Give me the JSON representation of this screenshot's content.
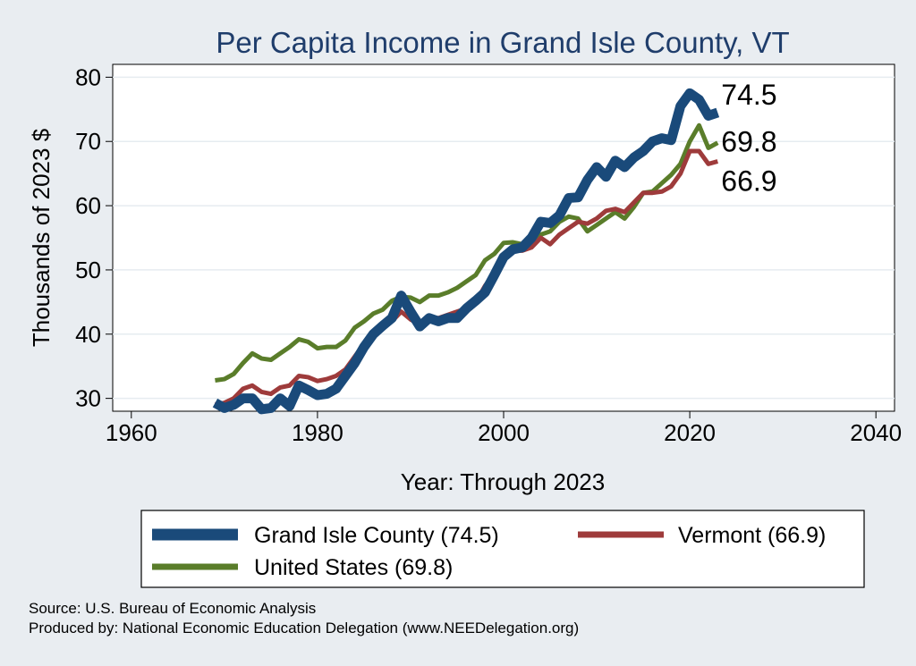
{
  "chart_data": {
    "type": "line",
    "title": "Per Capita Income in Grand Isle County, VT",
    "xlabel": "Year: Through 2023",
    "ylabel": "Thousands of 2023 $",
    "xlim": [
      1958,
      2042
    ],
    "ylim": [
      28,
      82
    ],
    "xticks": [
      1960,
      1980,
      2000,
      2020,
      2040
    ],
    "yticks": [
      30,
      40,
      50,
      60,
      70,
      80
    ],
    "x": [
      1969,
      1970,
      1971,
      1972,
      1973,
      1974,
      1975,
      1976,
      1977,
      1978,
      1979,
      1980,
      1981,
      1982,
      1983,
      1984,
      1985,
      1986,
      1987,
      1988,
      1989,
      1990,
      1991,
      1992,
      1993,
      1994,
      1995,
      1996,
      1997,
      1998,
      1999,
      2000,
      2001,
      2002,
      2003,
      2004,
      2005,
      2006,
      2007,
      2008,
      2009,
      2010,
      2011,
      2012,
      2013,
      2014,
      2015,
      2016,
      2017,
      2018,
      2019,
      2020,
      2021,
      2022,
      2023
    ],
    "series": [
      {
        "name": "Grand Isle County",
        "legend": "Grand Isle County (74.5)",
        "end_label": "74.5",
        "color": "#1a4a7a",
        "values": [
          29.3,
          28.5,
          29.0,
          30.0,
          30.0,
          28.3,
          28.5,
          30.0,
          28.8,
          32.0,
          31.3,
          30.5,
          30.7,
          31.5,
          33.5,
          35.5,
          38.0,
          40.0,
          41.3,
          42.5,
          46.0,
          43.5,
          41.2,
          42.5,
          42.0,
          42.5,
          42.5,
          44.0,
          45.2,
          46.5,
          49.2,
          52.0,
          53.2,
          53.5,
          55.0,
          57.5,
          57.3,
          58.5,
          61.2,
          61.3,
          64.0,
          66.0,
          64.5,
          67.0,
          66.0,
          67.5,
          68.5,
          70.0,
          70.5,
          70.2,
          75.5,
          77.5,
          76.5,
          74.0,
          74.5
        ]
      },
      {
        "name": "Vermont",
        "legend": "Vermont (66.9)",
        "end_label": "66.9",
        "color": "#9e3b3b",
        "values": [
          29.0,
          29.3,
          30.0,
          31.5,
          32.0,
          31.0,
          30.7,
          31.7,
          32.0,
          33.5,
          33.3,
          32.7,
          33.0,
          33.5,
          34.5,
          36.5,
          38.5,
          40.0,
          41.0,
          42.0,
          43.5,
          42.3,
          41.5,
          42.5,
          42.5,
          43.0,
          43.5,
          44.0,
          45.0,
          47.5,
          49.5,
          51.5,
          53.0,
          53.0,
          53.5,
          55.0,
          54.0,
          55.5,
          56.5,
          57.5,
          57.2,
          58.0,
          59.2,
          59.5,
          59.0,
          60.5,
          62.0,
          62.0,
          62.2,
          63.0,
          65.0,
          68.5,
          68.5,
          66.5,
          66.9
        ]
      },
      {
        "name": "United States",
        "legend": "United States (69.8)",
        "end_label": "69.8",
        "color": "#5a7d2a",
        "values": [
          32.8,
          33.0,
          33.8,
          35.5,
          37.0,
          36.2,
          36.0,
          37.0,
          38.0,
          39.2,
          38.8,
          37.8,
          38.0,
          38.0,
          39.0,
          41.0,
          42.0,
          43.2,
          43.8,
          45.2,
          45.8,
          45.7,
          45.0,
          46.0,
          46.0,
          46.5,
          47.2,
          48.2,
          49.2,
          51.5,
          52.5,
          54.2,
          54.3,
          54.0,
          54.3,
          55.5,
          56.0,
          57.5,
          58.3,
          58.0,
          56.0,
          57.0,
          58.0,
          59.0,
          58.0,
          59.8,
          62.0,
          62.2,
          63.5,
          64.8,
          66.5,
          70.0,
          72.5,
          69.0,
          69.8
        ]
      }
    ],
    "source_lines": [
      "Source: U.S. Bureau of Economic Analysis",
      "Produced by: National Economic Education Delegation (www.NEEDelegation.org)"
    ]
  }
}
